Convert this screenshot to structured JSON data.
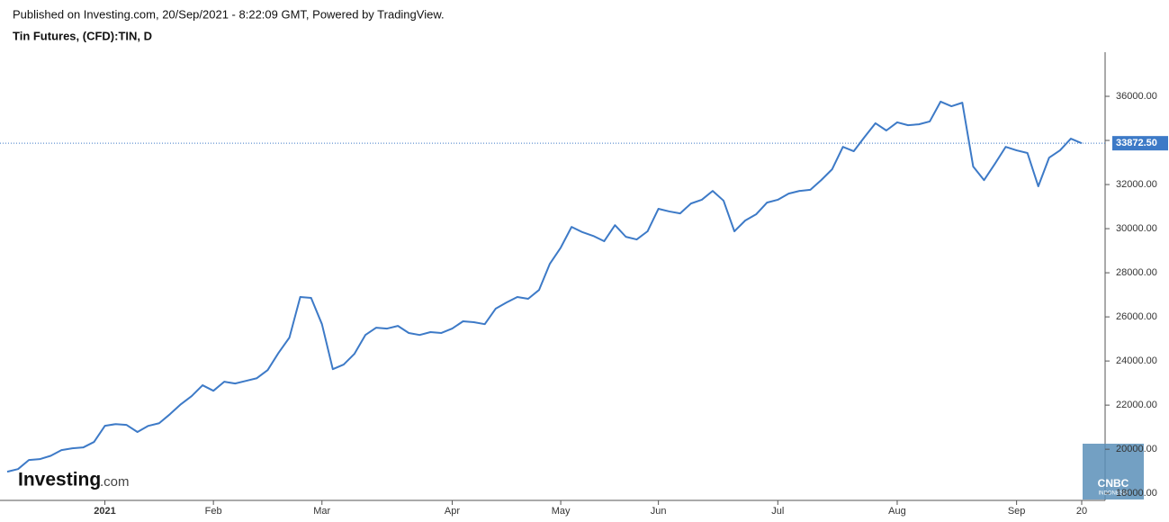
{
  "header": {
    "published": "Published on Investing.com, 20/Sep/2021 - 8:22:09 GMT, Powered by TradingView.",
    "symbol": "Tin Futures, (CFD):TIN, D"
  },
  "watermark": {
    "brand": "Investing",
    "suffix": ".com"
  },
  "logo": {
    "name": "CNBC",
    "sub": "INDONESIA"
  },
  "chart_data": {
    "type": "line",
    "categories": [
      null,
      null,
      null,
      null,
      null,
      null,
      null,
      null,
      null,
      "2021",
      null,
      null,
      null,
      null,
      null,
      null,
      null,
      null,
      null,
      "Feb",
      null,
      null,
      null,
      null,
      null,
      null,
      null,
      null,
      null,
      "Mar",
      null,
      null,
      null,
      null,
      null,
      null,
      null,
      null,
      null,
      null,
      null,
      "Apr",
      null,
      null,
      null,
      null,
      null,
      null,
      null,
      null,
      null,
      "May",
      null,
      null,
      null,
      null,
      null,
      null,
      null,
      null,
      "Jun",
      null,
      null,
      null,
      null,
      null,
      null,
      null,
      null,
      null,
      null,
      "Jul",
      null,
      null,
      null,
      null,
      null,
      null,
      null,
      null,
      null,
      null,
      "Aug",
      null,
      null,
      null,
      null,
      null,
      null,
      null,
      null,
      null,
      null,
      "Sep",
      null,
      null,
      null,
      null,
      null,
      "20"
    ],
    "series": [
      {
        "name": "TIN",
        "color": "#3d7ac7",
        "values": [
          18980,
          19100,
          19510,
          19550,
          19700,
          19960,
          20040,
          20080,
          20330,
          21060,
          21140,
          21100,
          20780,
          21060,
          21180,
          21590,
          22040,
          22410,
          22900,
          22650,
          23060,
          22980,
          23100,
          23220,
          23590,
          24370,
          25060,
          26900,
          26860,
          25670,
          23630,
          23840,
          24330,
          25180,
          25510,
          25470,
          25590,
          25270,
          25180,
          25310,
          25270,
          25470,
          25800,
          25760,
          25670,
          26370,
          26650,
          26900,
          26820,
          27220,
          28410,
          29140,
          30080,
          29840,
          29670,
          29430,
          30160,
          29630,
          29510,
          29880,
          30900,
          30780,
          30690,
          31140,
          31310,
          31710,
          31270,
          29880,
          30370,
          30650,
          31180,
          31310,
          31590,
          31710,
          31760,
          32200,
          32690,
          33710,
          33510,
          34160,
          34780,
          34450,
          34820,
          34690,
          34730,
          34860,
          35760,
          35550,
          35710,
          32820,
          32200,
          32940,
          33710,
          33550,
          33430,
          31920,
          33220,
          33550,
          34080,
          33872.5
        ]
      }
    ],
    "last_price": {
      "value": 33872.5,
      "label": "33872.50"
    },
    "ylim": [
      17680,
      38000
    ],
    "yticks": [
      {
        "value": 18000,
        "label": "18000.00"
      },
      {
        "value": 20000,
        "label": "20000.00"
      },
      {
        "value": 22000,
        "label": "22000.00"
      },
      {
        "value": 24000,
        "label": "24000.00"
      },
      {
        "value": 26000,
        "label": "26000.00"
      },
      {
        "value": 28000,
        "label": "28000.00"
      },
      {
        "value": 30000,
        "label": "30000.00"
      },
      {
        "value": 32000,
        "label": "32000.00"
      },
      {
        "value": 34000,
        "label": "34000.00"
      },
      {
        "value": 36000,
        "label": "36000.00"
      }
    ]
  }
}
